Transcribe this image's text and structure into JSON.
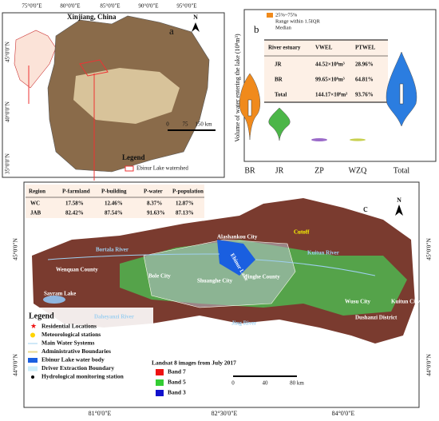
{
  "panel_a": {
    "label": "a",
    "title": "Xinjiang, China",
    "north": "N",
    "lon_labels": [
      "75°0'0\"E",
      "80°0'0\"E",
      "85°0'0\"E",
      "90°0'0\"E",
      "95°0'0\"E"
    ],
    "lat_labels": [
      "45°0'0\"N",
      "40°0'0\"N",
      "35°0'0\"N"
    ],
    "scale": [
      "0",
      "75",
      "150 km"
    ],
    "legend_title": "Legend",
    "legend_item": "Ebinur Lake watershed"
  },
  "panel_b": {
    "label": "b",
    "y_axis_label": "Volume of water entering the lake (10⁸m³)",
    "categories": [
      "BR",
      "JR",
      "ZP",
      "WZQ",
      "Total"
    ],
    "legend": [
      "25%~75%",
      "Range within 1.5IQR",
      "Median"
    ],
    "table": {
      "header": [
        "River estuary",
        "VWEL",
        "PTWEL"
      ],
      "rows": [
        [
          "JR",
          "44.52×10⁸m³",
          "28.96%"
        ],
        [
          "BR",
          "99.65×10⁸m³",
          "64.81%"
        ],
        [
          "Total",
          "144.17×10⁸m³",
          "93.76%"
        ]
      ]
    }
  },
  "panel_c": {
    "label": "c",
    "north": "N",
    "table": {
      "header": [
        "Region",
        "P-farmland",
        "P-building",
        "P-water",
        "P-population"
      ],
      "rows": [
        [
          "WC",
          "17.58%",
          "12.46%",
          "8.37%",
          "12.87%"
        ],
        [
          "JAB",
          "82.42%",
          "87.54%",
          "91.63%",
          "87.13%"
        ]
      ]
    },
    "places": [
      "Alashankou City",
      "Cutoff",
      "Bortala River",
      "Ebinur Lake",
      "Kuitun River",
      "Wenquan County",
      "Bole City",
      "Shuanghe City",
      "Jinghe County",
      "Sayram Lake",
      "Daheyanzi River",
      "Jing River",
      "Wusu City",
      "Kuitun City",
      "Dushanzi District"
    ],
    "legend_title": "Legend",
    "legend": [
      "Residential Locations",
      "Meteorological stations",
      "Main Water Systems",
      "Administrative Boundaries",
      "Ebinur Lake water body",
      "Driver Extraction Boundary",
      "Hydrological monitoring station"
    ],
    "landsat_title": "Landsat 8 images from July 2017",
    "bands": [
      "Band 7",
      "Band 5",
      "Band 3"
    ],
    "scale": [
      "0",
      "40",
      "80 km"
    ],
    "lon_labels": [
      "81°0'0\"E",
      "82°30'0\"E",
      "84°0'0\"E"
    ],
    "lat_labels": [
      "45°0'0\"N",
      "44°0'0\"N"
    ]
  }
}
